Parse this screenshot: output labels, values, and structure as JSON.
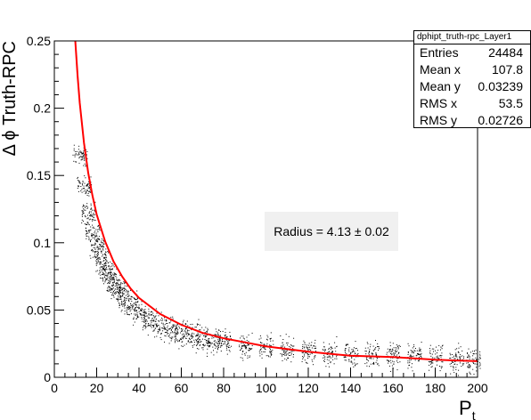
{
  "chart_data": {
    "type": "scatter",
    "title": "",
    "xlabel": "P",
    "xlabel_sub": "t",
    "ylabel": "Δ ϕ Truth-RPC",
    "xlim": [
      0,
      200
    ],
    "ylim": [
      0,
      0.25
    ],
    "x_ticks": [
      0,
      20,
      40,
      60,
      80,
      100,
      120,
      140,
      160,
      180,
      200
    ],
    "y_ticks": [
      0,
      0.05,
      0.1,
      0.15,
      0.2,
      0.25
    ],
    "y_tick_labels": [
      "0",
      "0.05",
      "0.1",
      "0.15",
      "0.2",
      "0.25"
    ],
    "grid": false,
    "point_color": "#000000",
    "fit_color": "#ff0000",
    "series": [
      {
        "type": "scatter",
        "x": [
          12,
          14,
          16,
          18,
          20,
          22,
          24,
          26,
          28,
          30,
          33,
          36,
          40,
          45,
          50,
          55,
          60,
          65,
          70,
          75,
          80,
          90,
          100,
          110,
          120,
          130,
          140,
          150,
          160,
          170,
          180,
          190,
          198
        ],
        "y": [
          0.165,
          0.142,
          0.122,
          0.108,
          0.098,
          0.089,
          0.081,
          0.075,
          0.069,
          0.065,
          0.058,
          0.054,
          0.048,
          0.043,
          0.039,
          0.036,
          0.033,
          0.031,
          0.029,
          0.027,
          0.026,
          0.023,
          0.022,
          0.021,
          0.019,
          0.018,
          0.018,
          0.017,
          0.016,
          0.016,
          0.015,
          0.014,
          0.013
        ]
      },
      {
        "type": "line",
        "x": [
          9.9,
          11,
          12,
          14,
          16,
          18,
          20,
          24,
          28,
          32,
          36,
          40,
          50,
          60,
          70,
          80,
          90,
          100,
          120,
          140,
          160,
          180,
          200
        ],
        "y": [
          0.25,
          0.224,
          0.204,
          0.174,
          0.152,
          0.135,
          0.121,
          0.101,
          0.086,
          0.075,
          0.066,
          0.059,
          0.047,
          0.039,
          0.033,
          0.029,
          0.026,
          0.023,
          0.019,
          0.016,
          0.015,
          0.013,
          0.012
        ]
      }
    ],
    "stats_box": {
      "title": "dphipt_truth-rpc_Layer1",
      "rows": [
        {
          "label": "Entries",
          "value": "24484"
        },
        {
          "label": "Mean x",
          "value": "107.8"
        },
        {
          "label": "Mean y",
          "value": "0.03239"
        },
        {
          "label": "RMS x",
          "value": "53.5"
        },
        {
          "label": "RMS y",
          "value": "0.02726"
        }
      ]
    },
    "annotation": "Radius = 4.13 ± 0.02"
  }
}
